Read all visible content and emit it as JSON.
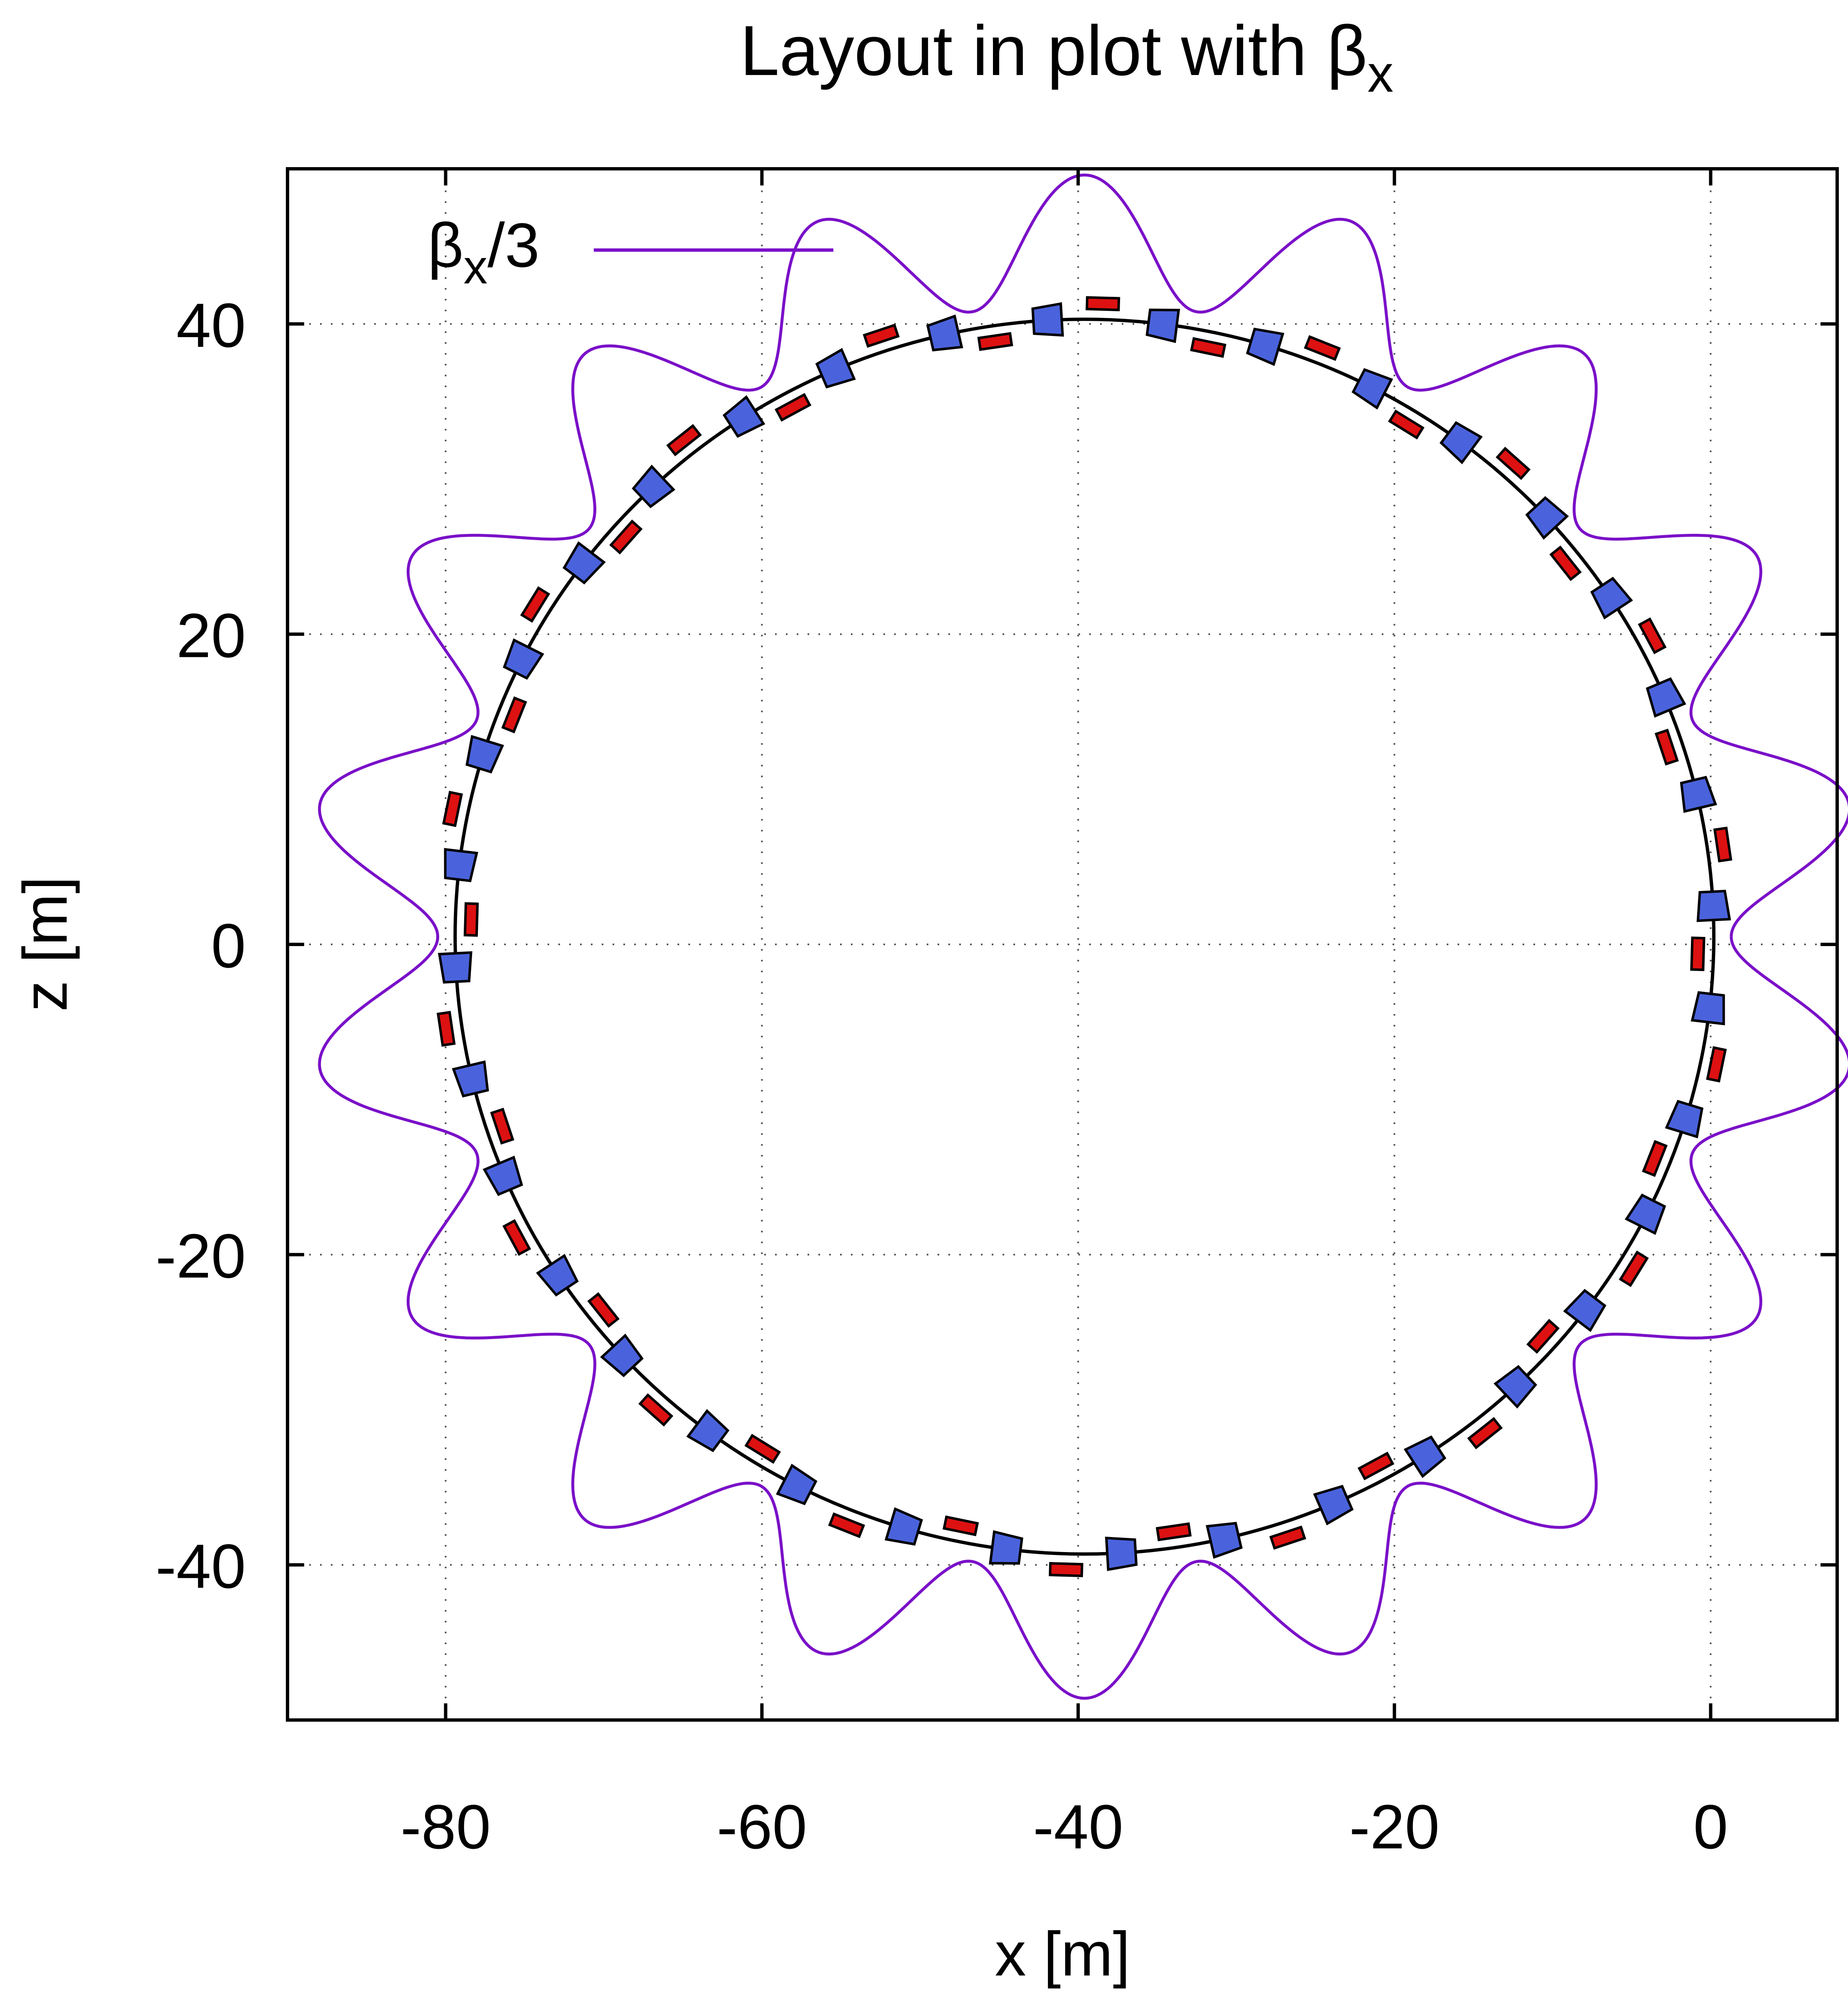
{
  "chart_data": {
    "type": "line",
    "title_main": "Layout in plot with β",
    "title_sub": "x",
    "xlabel": "x [m]",
    "ylabel": "z [m]",
    "xlim": [
      -90,
      8
    ],
    "ylim": [
      -50,
      50
    ],
    "xticks": [
      -80,
      -60,
      -40,
      -20,
      0
    ],
    "yticks": [
      -40,
      -20,
      0,
      20,
      40
    ],
    "xtick_labels": [
      "-80",
      "-60",
      "-40",
      "-20",
      "0"
    ],
    "ytick_labels": [
      "-40",
      "-20",
      "0",
      "20",
      "40"
    ],
    "grid": true,
    "legend": {
      "position": "top-left",
      "label_main": "β",
      "label_sub": "x",
      "label_tail": "/3"
    },
    "colors": {
      "beta": "#7a10c8",
      "ring": "#000000",
      "quadrupole": "#4a63dc",
      "dipole": "#dd1111",
      "grid": "#555555"
    },
    "ring": {
      "center_x": -39.6,
      "center_z": 0.5,
      "radius": 39.8,
      "cells": 18,
      "elements_per_cell": 4
    },
    "beta_envelope": {
      "series_name": "βx/3",
      "center_x": -39.6,
      "center_z": 0.5,
      "base_radius": 45.0,
      "amplitude": 4.1,
      "periods": 18,
      "phase_deg": 10
    }
  }
}
